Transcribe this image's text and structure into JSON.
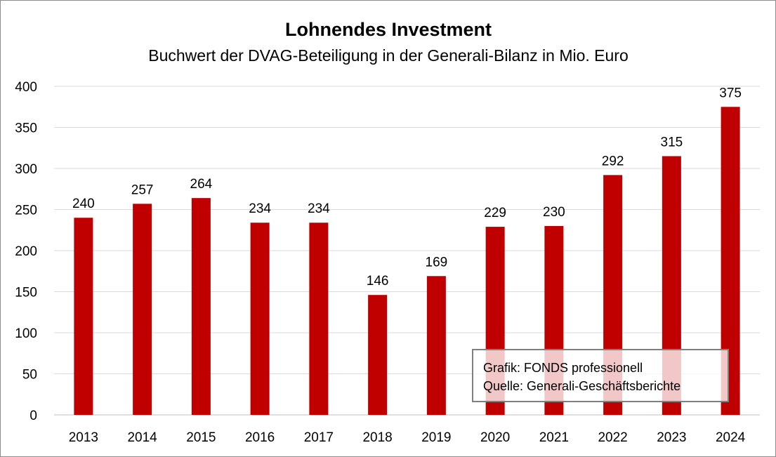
{
  "chart_data": {
    "type": "bar",
    "title": "Lohnendes Investment",
    "subtitle": "Buchwert der DVAG-Beteiligung in der Generali-Bilanz in Mio. Euro",
    "categories": [
      "2013",
      "2014",
      "2015",
      "2016",
      "2017",
      "2018",
      "2019",
      "2020",
      "2021",
      "2022",
      "2023",
      "2024"
    ],
    "values": [
      240,
      257,
      264,
      234,
      234,
      146,
      169,
      229,
      230,
      292,
      315,
      375
    ],
    "ylim": [
      0,
      400
    ],
    "yticks": [
      0,
      50,
      100,
      150,
      200,
      250,
      300,
      350,
      400
    ],
    "xlabel": "",
    "ylabel": "",
    "grid": true,
    "legend": "none",
    "bar_color": "#c00000",
    "data_labels": true
  },
  "note": {
    "line1": "Grafik: FONDS professionell",
    "line2": "Quelle: Generali-Geschäftsberichte"
  }
}
